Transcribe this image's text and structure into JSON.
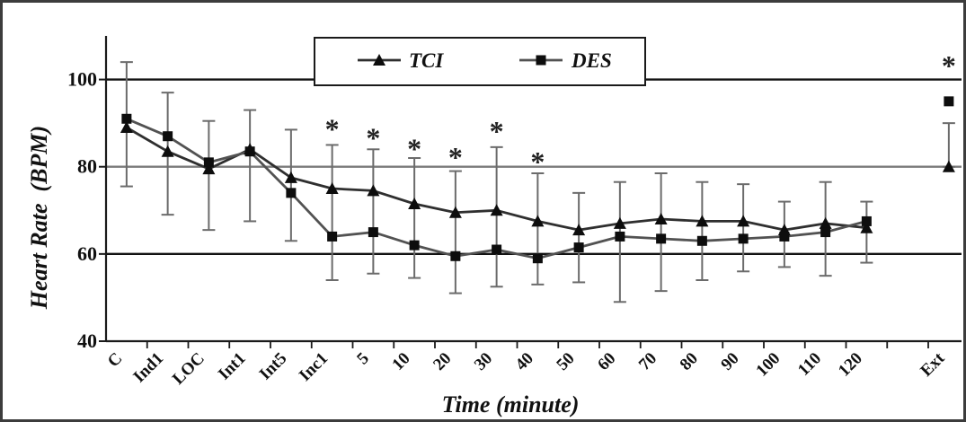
{
  "chart_data": {
    "type": "line",
    "xlabel": "Time (minute)",
    "ylabel": "Heart Rate  (BPM)",
    "ylim": [
      40,
      110
    ],
    "yticks": [
      40,
      60,
      80,
      100
    ],
    "grid": true,
    "y_gridlines": [
      {
        "value": 100,
        "color": "#121212"
      },
      {
        "value": 80,
        "color": "#7a7a7a"
      },
      {
        "value": 60,
        "color": "#121212"
      }
    ],
    "legend": {
      "position": "top-center"
    },
    "categories": [
      "C",
      "Ind1",
      "LOC",
      "Int1",
      "Int5",
      "Inc1",
      "5",
      "10",
      "20",
      "30",
      "40",
      "50",
      "60",
      "70",
      "80",
      "90",
      "100",
      "110",
      "120",
      "",
      "Ext"
    ],
    "series": [
      {
        "name": "TCI",
        "marker": "triangle",
        "values": [
          89,
          83.5,
          79.5,
          84,
          77.5,
          75,
          74.5,
          71.5,
          69.5,
          70,
          67.5,
          65.5,
          67,
          68,
          67.5,
          67.5,
          65.5,
          67,
          66,
          null,
          80
        ]
      },
      {
        "name": "DES",
        "marker": "square",
        "values": [
          91,
          87,
          81,
          83.5,
          74,
          64,
          65,
          62,
          59.5,
          61,
          59,
          61.5,
          64,
          63.5,
          63,
          63.5,
          64,
          65,
          67.5,
          null,
          95
        ]
      }
    ],
    "error_bars": {
      "upper": [
        104,
        97,
        90.5,
        93,
        88.5,
        85,
        84,
        82,
        79,
        84.5,
        78.5,
        74,
        76.5,
        78.5,
        76.5,
        76,
        72,
        76.5,
        72,
        null,
        90
      ],
      "lower": [
        75.5,
        69,
        65.5,
        67.5,
        63,
        54,
        55.5,
        54.5,
        51,
        52.5,
        53,
        53.5,
        49,
        51.5,
        54,
        56,
        57,
        55,
        58,
        null,
        80
      ]
    },
    "significance_markers": [
      {
        "category": "Inc1",
        "text": "*",
        "y": 89.5
      },
      {
        "category": "5",
        "text": "*",
        "y": 87.5
      },
      {
        "category": "10",
        "text": "*",
        "y": 85
      },
      {
        "category": "20",
        "text": "*",
        "y": 83
      },
      {
        "category": "30",
        "text": "*",
        "y": 89
      },
      {
        "category": "40",
        "text": "*",
        "y": 82
      },
      {
        "category": "Ext",
        "text": "*",
        "y": 104
      }
    ],
    "colors": {
      "TCI": "#2f2f2f",
      "DES": "#525252",
      "markers": "#0d0d0d",
      "error_bars": "#6b6b6b",
      "axis": "#1a1a1a",
      "frame": "#3c3c3c",
      "legend_border": "#1a1a1a"
    }
  }
}
